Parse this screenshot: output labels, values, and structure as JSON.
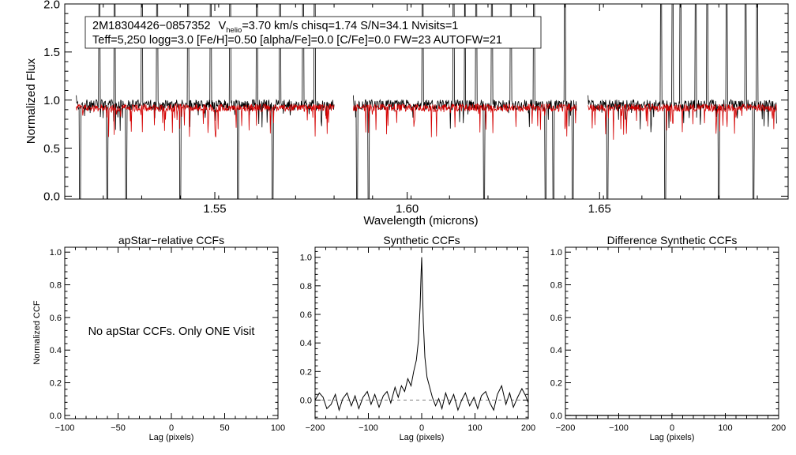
{
  "colors": {
    "observed": "#000000",
    "model": "#d40000",
    "axis": "#000000",
    "dashed": "#808080"
  },
  "chart_data": [
    {
      "type": "line",
      "panel": "spectrum",
      "xlabel": "Wavelength (microns)",
      "ylabel": "Normalized Flux",
      "xlim": [
        1.511,
        1.699
      ],
      "ylim": [
        -0.03,
        2.0
      ],
      "xticks": [
        1.55,
        1.6,
        1.65
      ],
      "xtick_labels": [
        "1.55",
        "1.60",
        "1.65"
      ],
      "yticks": [
        0.0,
        0.5,
        1.0,
        1.5,
        2.0
      ],
      "ytick_labels": [
        "0.0",
        "0.5",
        "1.0",
        "1.5",
        "2.0"
      ],
      "annotation": {
        "star_id": "2M18304426−0857352",
        "v_prefix": "V",
        "v_subscript": "helio",
        "v_suffix": "=3.70 km/s  chisq=1.74  S/N=34.1  Nvisits=1",
        "line2": "Teff=5,250 logg=3.0 [Fe/H]=0.50 [alpha/Fe]=0.0 [C/Fe]=0.0 FW=23 AUTOFW=21"
      },
      "chip_ranges": [
        [
          1.514,
          1.581
        ],
        [
          1.586,
          1.644
        ],
        [
          1.647,
          1.696
        ]
      ],
      "continuum": 0.95,
      "model_level": 0.92,
      "spikes_up": [
        1.52,
        1.524,
        1.531,
        1.535,
        1.543,
        1.549,
        1.554,
        1.561,
        1.567,
        1.573,
        1.576,
        1.604,
        1.612,
        1.615,
        1.618,
        1.622,
        1.627,
        1.633,
        1.641,
        1.666,
        1.669,
        1.671,
        1.675,
        1.678,
        1.683,
        1.688,
        1.691
      ],
      "spikes_down": [
        1.515,
        1.522,
        1.527,
        1.541,
        1.556,
        1.565,
        1.587,
        1.59,
        1.62,
        1.636,
        1.638,
        1.643,
        1.652,
        1.667,
        1.681,
        1.69
      ],
      "series": [
        {
          "name": "",
          "color": "#000000"
        },
        {
          "name": "",
          "color": "#d40000"
        }
      ]
    },
    {
      "type": "line",
      "panel": "apstar",
      "title": "apStar−relative CCFs",
      "xlabel": "Lag (pixels)",
      "ylabel": "Normalized CCF",
      "xlim": [
        -100,
        100
      ],
      "ylim": [
        -0.02,
        1.03
      ],
      "xticks": [
        -100,
        -50,
        0,
        50,
        100
      ],
      "xtick_labels": [
        "−100",
        "−50",
        "0",
        "50",
        "100"
      ],
      "yticks": [
        0.0,
        0.2,
        0.4,
        0.6,
        0.8,
        1.0
      ],
      "ytick_labels": [
        "0.0",
        "0.2",
        "0.4",
        "0.6",
        "0.8",
        "1.0"
      ],
      "message": "No apStar CCFs.  Only ONE Visit",
      "series": []
    },
    {
      "type": "line",
      "panel": "synthetic",
      "title": "Synthetic CCFs",
      "xlabel": "Lag (pixels)",
      "ylabel": "",
      "xlim": [
        -200,
        200
      ],
      "ylim": [
        -0.13,
        1.07
      ],
      "xticks": [
        -200,
        -100,
        0,
        100,
        200
      ],
      "xtick_labels": [
        "−200",
        "−100",
        "0",
        "100",
        "200"
      ],
      "yticks": [
        0.0,
        0.2,
        0.4,
        0.6,
        0.8,
        1.0
      ],
      "ytick_labels": [
        "0.0",
        "0.2",
        "0.4",
        "0.6",
        "0.8",
        "1.0"
      ],
      "zero_line": 0.0,
      "series": [
        {
          "name": "",
          "x": [
            -200,
            -192,
            -185,
            -178,
            -170,
            -162,
            -155,
            -148,
            -140,
            -132,
            -125,
            -118,
            -110,
            -102,
            -95,
            -88,
            -80,
            -72,
            -65,
            -58,
            -50,
            -44,
            -38,
            -32,
            -26,
            -20,
            -15,
            -10,
            -6,
            -3,
            -1,
            0,
            1,
            3,
            6,
            10,
            15,
            20,
            26,
            32,
            38,
            45,
            52,
            60,
            68,
            75,
            82,
            90,
            98,
            105,
            112,
            120,
            128,
            135,
            142,
            150,
            158,
            165,
            172,
            180,
            188,
            195,
            200
          ],
          "y": [
            0.0,
            0.05,
            0.02,
            -0.06,
            -0.03,
            0.04,
            -0.07,
            0.01,
            0.05,
            -0.04,
            0.03,
            -0.06,
            0.02,
            0.06,
            -0.03,
            0.04,
            -0.05,
            0.03,
            0.06,
            -0.02,
            0.09,
            0.02,
            0.1,
            0.06,
            0.15,
            0.1,
            0.2,
            0.28,
            0.42,
            0.65,
            0.9,
            1.0,
            0.85,
            0.55,
            0.3,
            0.16,
            0.09,
            0.02,
            -0.04,
            0.01,
            -0.06,
            0.05,
            -0.03,
            0.04,
            -0.07,
            0.0,
            0.05,
            -0.04,
            0.02,
            -0.06,
            0.03,
            0.06,
            -0.02,
            -0.07,
            0.04,
            0.1,
            -0.03,
            0.05,
            -0.05,
            0.02,
            0.08,
            0.03,
            -0.02
          ]
        }
      ]
    },
    {
      "type": "line",
      "panel": "difference",
      "title": "Difference Synthetic CCFs",
      "xlabel": "Lag (pixels)",
      "ylabel": "",
      "xlim": [
        -200,
        200
      ],
      "ylim": [
        -0.02,
        1.03
      ],
      "xticks": [
        -200,
        -100,
        0,
        100,
        200
      ],
      "xtick_labels": [
        "−200",
        "−100",
        "0",
        "100",
        "200"
      ],
      "yticks": [
        0.0,
        0.2,
        0.4,
        0.6,
        0.8,
        1.0
      ],
      "ytick_labels": [
        "0.0",
        "0.2",
        "0.4",
        "0.6",
        "0.8",
        "1.0"
      ],
      "series": [
        {
          "name": "",
          "x": [
            -200,
            200
          ],
          "y": [
            0.0,
            0.0
          ]
        }
      ]
    }
  ]
}
